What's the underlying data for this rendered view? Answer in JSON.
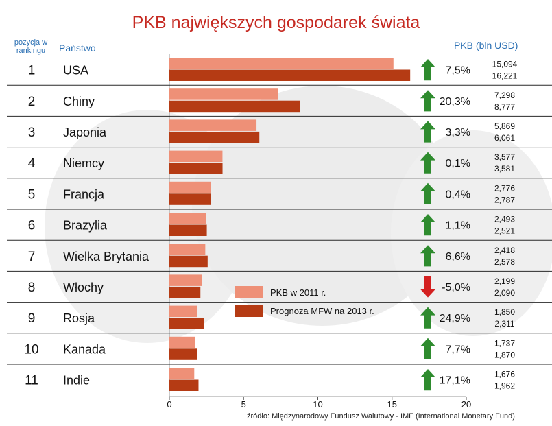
{
  "header": {
    "title": "PKB największych gospodarek świata",
    "rank_header": "pozycja w rankingu",
    "country_header": "Państwo",
    "gdp_header": "PKB (bln USD)"
  },
  "source": "źródło: Międzynarodowy Fundusz Walutowy - IMF (International Monetary Fund)",
  "colors": {
    "series_2011": "#ee9077",
    "series_2013": "#b53b14",
    "arrow_up": "#2e8b2e",
    "arrow_down": "#d42020",
    "title": "#c62a22",
    "header": "#2a6fb3"
  },
  "chart_data": {
    "type": "bar",
    "orientation": "horizontal",
    "title": "PKB największych gospodarek świata",
    "xlabel": "",
    "ylabel": "",
    "xlim": [
      0,
      20
    ],
    "x_ticks": [
      0,
      5,
      10,
      15,
      20
    ],
    "categories": [
      "USA",
      "Chiny",
      "Japonia",
      "Niemcy",
      "Francja",
      "Brazylia",
      "Wielka Brytania",
      "Włochy",
      "Rosja",
      "Kanada",
      "Indie"
    ],
    "ranks": [
      "1",
      "2",
      "3",
      "4",
      "5",
      "6",
      "7",
      "8",
      "9",
      "10",
      "11"
    ],
    "series": [
      {
        "name": "PKB w 2011 r.",
        "values": [
          15.094,
          7.298,
          5.869,
          3.577,
          2.776,
          2.493,
          2.418,
          2.199,
          1.85,
          1.737,
          1.676
        ]
      },
      {
        "name": "Prognoza MFW na 2013 r.",
        "values": [
          16.221,
          8.777,
          6.061,
          3.581,
          2.787,
          2.521,
          2.578,
          2.09,
          2.311,
          1.87,
          1.962
        ]
      }
    ],
    "value_labels_2011": [
      "15,094",
      "7,298",
      "5,869",
      "3,577",
      "2,776",
      "2,493",
      "2,418",
      "2,199",
      "1,850",
      "1,737",
      "1,676"
    ],
    "value_labels_2013": [
      "16,221",
      "8,777",
      "6,061",
      "3,581",
      "2,787",
      "2,521",
      "2,578",
      "2,090",
      "2,311",
      "1,870",
      "1,962"
    ],
    "changes": [
      "7,5%",
      "20,3%",
      "3,3%",
      "0,1%",
      "0,4%",
      "1,1%",
      "6,6%",
      "-5,0%",
      "24,9%",
      "7,7%",
      "17,1%"
    ],
    "change_directions": [
      "up",
      "up",
      "up",
      "up",
      "up",
      "up",
      "up",
      "down",
      "up",
      "up",
      "up"
    ],
    "legend": {
      "position": "lower-center",
      "entries": [
        "PKB w 2011 r.",
        "Prognoza MFW na 2013 r."
      ]
    }
  }
}
